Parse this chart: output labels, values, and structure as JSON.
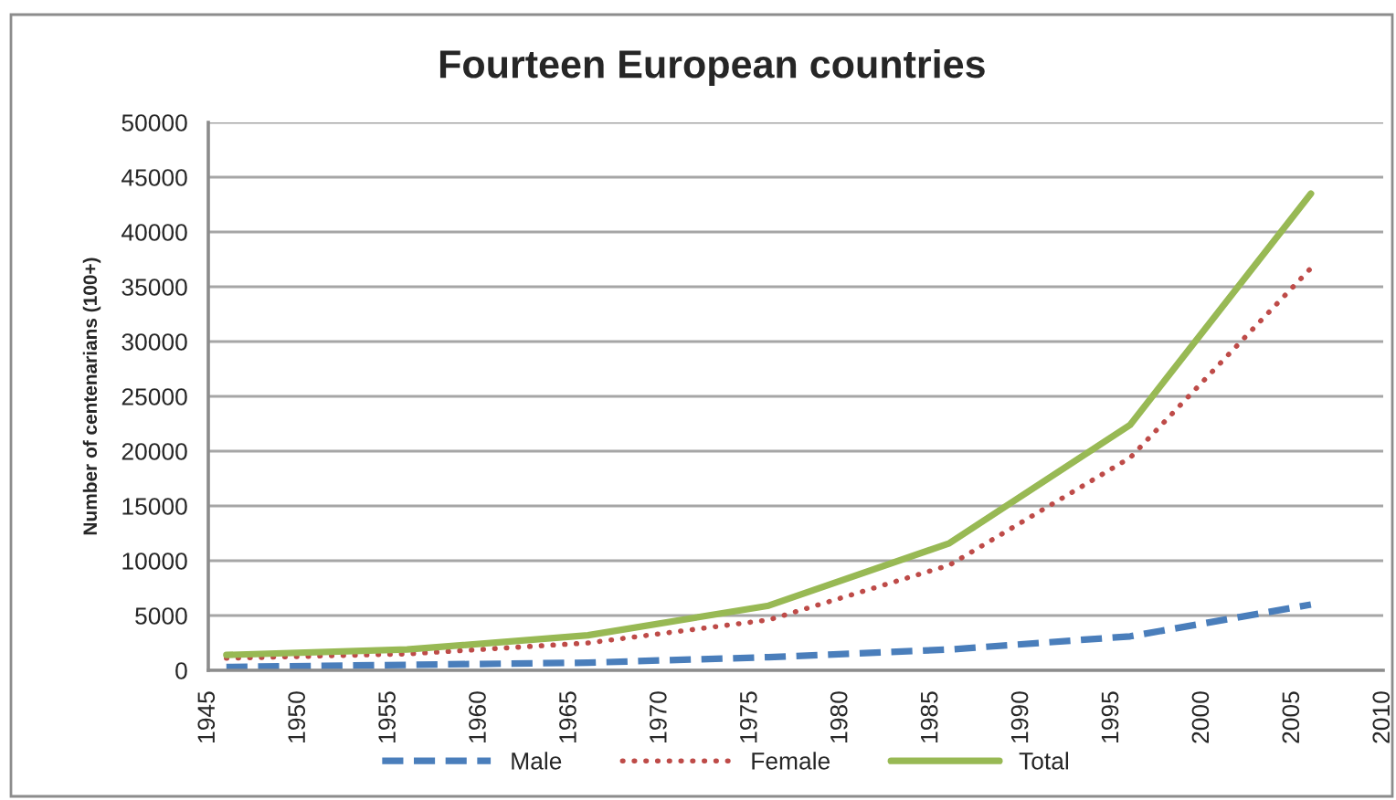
{
  "chart_data": {
    "type": "line",
    "title": "Fourteen European countries",
    "ylabel": "Number of centenarians (100+)",
    "x": [
      1946,
      1956,
      1966,
      1976,
      1986,
      1996,
      2006
    ],
    "xlim": [
      1945,
      2010
    ],
    "xticks": [
      1945,
      1950,
      1955,
      1960,
      1965,
      1970,
      1975,
      1980,
      1985,
      1990,
      1995,
      2000,
      2005,
      2010
    ],
    "ylim": [
      0,
      50000
    ],
    "yticks": [
      0,
      5000,
      10000,
      15000,
      20000,
      25000,
      30000,
      35000,
      40000,
      45000,
      50000
    ],
    "grid": "y",
    "legend": "bottom",
    "series": [
      {
        "name": "Male",
        "color": "#4a7ebb",
        "line_style": "dashed",
        "values": [
          300,
          500,
          700,
          1200,
          1900,
          3100,
          6000
        ]
      },
      {
        "name": "Female",
        "color": "#be4b48",
        "line_style": "dotted",
        "values": [
          1100,
          1500,
          2500,
          4600,
          9600,
          19400,
          36700
        ]
      },
      {
        "name": "Total",
        "color": "#98b954",
        "line_style": "solid",
        "values": [
          1400,
          1900,
          3200,
          5900,
          11600,
          22400,
          43500
        ]
      }
    ]
  }
}
